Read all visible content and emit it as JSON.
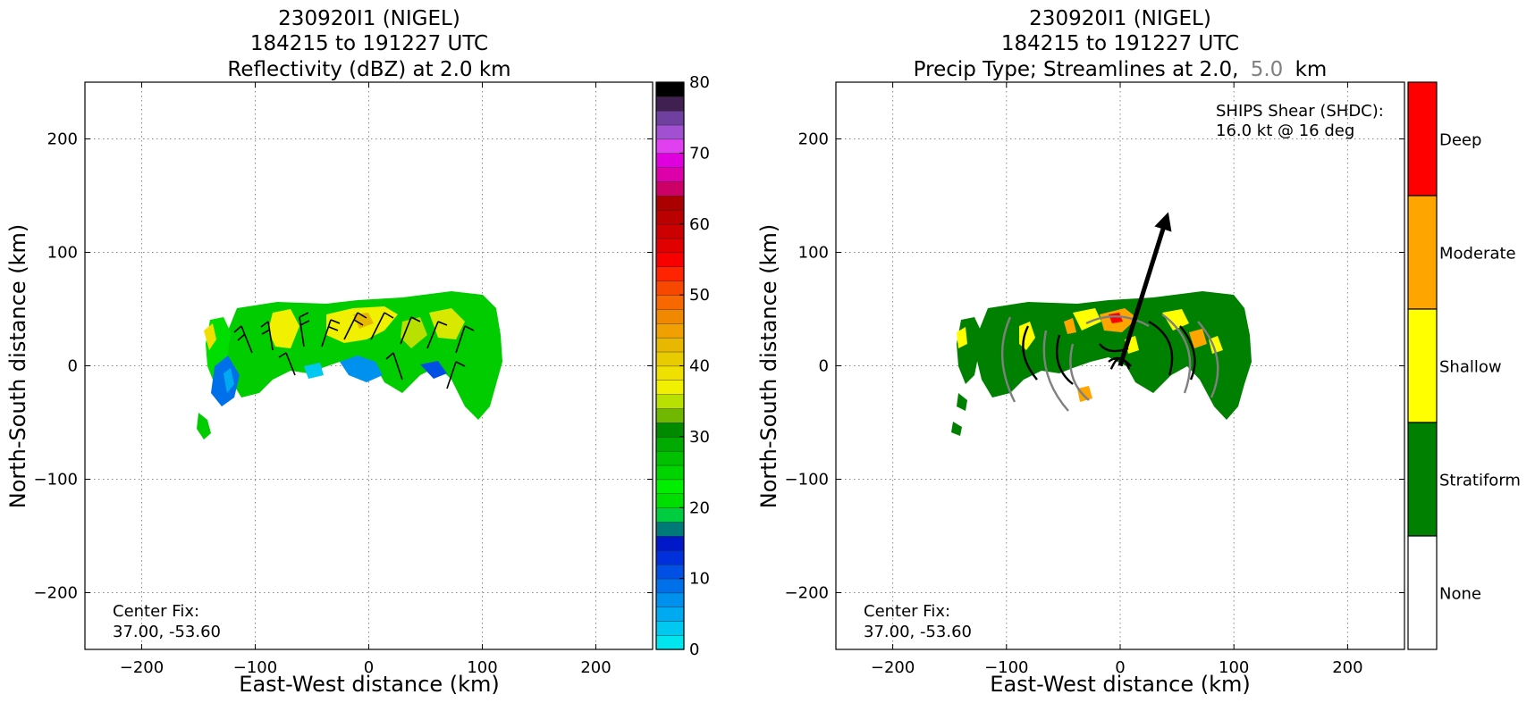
{
  "chart_data": [
    {
      "type": "heatmap",
      "title_lines": [
        "230920I1 (NIGEL)",
        "184215 to 191227 UTC",
        "Reflectivity (dBZ) at 2.0 km"
      ],
      "xlabel": "East-West distance (km)",
      "ylabel": "North-South distance (km)",
      "xlim": [
        -250,
        250
      ],
      "ylim": [
        -250,
        250
      ],
      "xticks": [
        -200,
        -100,
        0,
        100,
        200
      ],
      "yticks": [
        -200,
        -100,
        0,
        100,
        200
      ],
      "grid": true,
      "annotation_lines": [
        "Center Fix:",
        "37.00, -53.60"
      ],
      "colorbar": {
        "range": [
          0,
          80
        ],
        "ticks": [
          0,
          10,
          20,
          30,
          40,
          50,
          60,
          70,
          80
        ],
        "colors": [
          "#00e5ee",
          "#00c8f0",
          "#00aaf0",
          "#0090ee",
          "#0070ea",
          "#0050e6",
          "#0030dc",
          "#0018c8",
          "#007a78",
          "#00cc40",
          "#00dd00",
          "#00ee00",
          "#00d400",
          "#00c000",
          "#00aa00",
          "#008a00",
          "#70b800",
          "#b8e000",
          "#f0f000",
          "#f0e000",
          "#e8cc00",
          "#e8b800",
          "#f0a000",
          "#f08800",
          "#f86800",
          "#f84800",
          "#ff2400",
          "#f80000",
          "#e00000",
          "#cc0000",
          "#bb0000",
          "#aa0000",
          "#cc0066",
          "#dd00aa",
          "#e000dd",
          "#e040f0",
          "#a050d0",
          "#7040a0",
          "#402050",
          "#000000"
        ]
      },
      "echo_levels_dbz": [
        18,
        26,
        38,
        8,
        12
      ]
    },
    {
      "type": "heatmap",
      "title_lines": [
        "230920I1 (NIGEL)",
        "184215 to 191227 UTC",
        "Precip Type; Streamlines at 2.0,",
        "5.0",
        "km"
      ],
      "xlabel": "East-West distance (km)",
      "ylabel": "North-South distance (km)",
      "xlim": [
        -250,
        250
      ],
      "ylim": [
        -250,
        250
      ],
      "xticks": [
        -200,
        -100,
        0,
        100,
        200
      ],
      "yticks": [
        -200,
        -100,
        0,
        100,
        200
      ],
      "grid": true,
      "annotation_lines": [
        "Center Fix:",
        "37.00, -53.60"
      ],
      "shear_lines": [
        "SHIPS Shear (SHDC):",
        "16.0 kt @ 16 deg"
      ],
      "shear_vector": {
        "from": [
          0,
          0
        ],
        "to": [
          40,
          128
        ]
      },
      "streamline_colors": {
        "2.0 km": "#000000",
        "5.0 km": "#808080"
      },
      "legend_categories": [
        {
          "label": "Deep",
          "color": "#ff0000"
        },
        {
          "label": "Moderate",
          "color": "#ffa500"
        },
        {
          "label": "Shallow",
          "color": "#ffff00"
        },
        {
          "label": "Stratiform",
          "color": "#008000"
        },
        {
          "label": "None",
          "color": "#ffffff"
        }
      ]
    }
  ]
}
